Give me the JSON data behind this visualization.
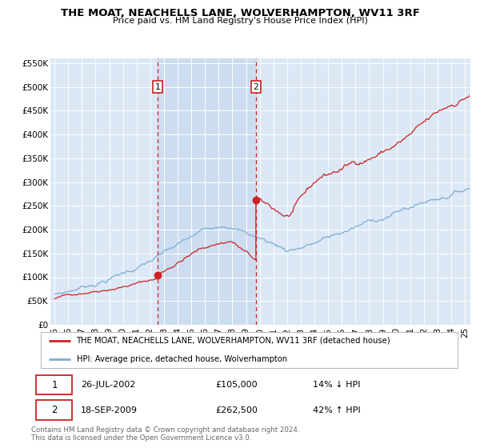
{
  "title": "THE MOAT, NEACHELLS LANE, WOLVERHAMPTON, WV11 3RF",
  "subtitle": "Price paid vs. HM Land Registry's House Price Index (HPI)",
  "bg_color": "#dce8f5",
  "shade_color": "#ccddf0",
  "plot_bg_color": "#dce8f5",
  "ylim": [
    0,
    560000
  ],
  "yticks": [
    0,
    50000,
    100000,
    150000,
    200000,
    250000,
    300000,
    350000,
    400000,
    450000,
    500000,
    550000
  ],
  "ytick_labels": [
    "£0",
    "£50K",
    "£100K",
    "£150K",
    "£200K",
    "£250K",
    "£300K",
    "£350K",
    "£400K",
    "£450K",
    "£500K",
    "£550K"
  ],
  "xlim_start": 1994.7,
  "xlim_end": 2025.4,
  "xtick_years": [
    1995,
    1996,
    1997,
    1998,
    1999,
    2000,
    2001,
    2002,
    2003,
    2004,
    2005,
    2006,
    2007,
    2008,
    2009,
    2010,
    2011,
    2012,
    2013,
    2014,
    2015,
    2016,
    2017,
    2018,
    2019,
    2020,
    2021,
    2022,
    2023,
    2024,
    2025
  ],
  "sale1_x": 2002.55,
  "sale1_y": 105000,
  "sale1_label": "1",
  "sale2_x": 2009.72,
  "sale2_y": 262500,
  "sale2_label": "2",
  "red_line_color": "#cc2222",
  "blue_line_color": "#7aadd4",
  "legend_label_red": "THE MOAT, NEACHELLS LANE, WOLVERHAMPTON, WV11 3RF (detached house)",
  "legend_label_blue": "HPI: Average price, detached house, Wolverhampton",
  "footer_line1": "Contains HM Land Registry data © Crown copyright and database right 2024.",
  "footer_line2": "This data is licensed under the Open Government Licence v3.0.",
  "table_row1_num": "1",
  "table_row1_date": "26-JUL-2002",
  "table_row1_price": "£105,000",
  "table_row1_hpi": "14% ↓ HPI",
  "table_row2_num": "2",
  "table_row2_date": "18-SEP-2009",
  "table_row2_price": "£262,500",
  "table_row2_hpi": "42% ↑ HPI"
}
